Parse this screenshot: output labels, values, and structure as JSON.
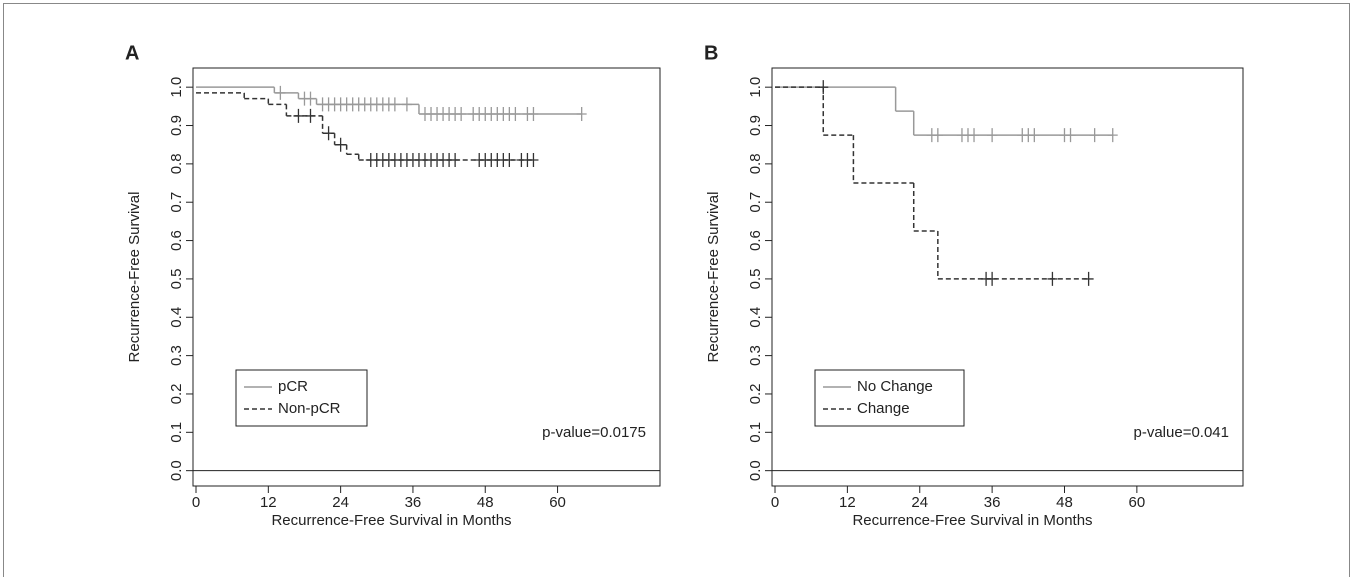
{
  "chart_data": [
    {
      "type": "km",
      "panel_label": "A",
      "xlabel": "Recurrence-Free Survival in Months",
      "ylabel": "Recurrence-Free Survival",
      "annotation": "p-value=0.0175",
      "legend": "bottom-left",
      "xlim": [
        -0.5,
        77
      ],
      "ylim": [
        -0.04,
        1.05
      ],
      "xticks": [
        0,
        12,
        24,
        36,
        48,
        60
      ],
      "yticks": [
        {
          "value": 0,
          "label": "0.0"
        },
        {
          "value": 0.1,
          "label": "0.1"
        },
        {
          "value": 0.2,
          "label": "0.2"
        },
        {
          "value": 0.3,
          "label": "0.3"
        },
        {
          "value": 0.4,
          "label": "0.4"
        },
        {
          "value": 0.5,
          "label": "0.5"
        },
        {
          "value": 0.6,
          "label": "0.6"
        },
        {
          "value": 0.7,
          "label": "0.7"
        },
        {
          "value": 0.8,
          "label": "0.8"
        },
        {
          "value": 0.9,
          "label": "0.9"
        },
        {
          "value": 1.0,
          "label": "1.0"
        }
      ],
      "series": [
        {
          "name": "pCR",
          "color": "#999999",
          "linestyle": "solid",
          "x": [
            0,
            13,
            17,
            20,
            37
          ],
          "values": [
            1.0,
            0.985,
            0.97,
            0.955,
            0.93
          ],
          "censored": {
            "x": [
              14,
              18,
              19,
              21,
              22,
              23,
              24,
              25,
              26,
              27,
              28,
              29,
              30,
              31,
              32,
              33,
              35,
              38,
              39,
              40,
              41,
              42,
              43,
              44,
              46,
              47,
              48,
              49,
              50,
              51,
              52,
              53,
              55,
              56,
              64
            ],
            "values": [
              0.985,
              0.97,
              0.97,
              0.955,
              0.955,
              0.955,
              0.955,
              0.955,
              0.955,
              0.955,
              0.955,
              0.955,
              0.955,
              0.955,
              0.955,
              0.955,
              0.955,
              0.93,
              0.93,
              0.93,
              0.93,
              0.93,
              0.93,
              0.93,
              0.93,
              0.93,
              0.93,
              0.93,
              0.93,
              0.93,
              0.93,
              0.93,
              0.93,
              0.93,
              0.93
            ]
          }
        },
        {
          "name": "Non-pCR",
          "color": "#333333",
          "linestyle": "dashed",
          "x": [
            0,
            8,
            12,
            15,
            21,
            23,
            25,
            27
          ],
          "values": [
            0.985,
            0.97,
            0.955,
            0.925,
            0.88,
            0.85,
            0.825,
            0.81
          ],
          "censored": {
            "x": [
              17,
              19,
              22,
              24,
              29,
              30,
              31,
              32,
              33,
              34,
              35,
              36,
              37,
              38,
              39,
              40,
              41,
              42,
              43,
              47,
              48,
              49,
              50,
              51,
              52,
              54,
              55,
              56
            ],
            "values": [
              0.925,
              0.925,
              0.88,
              0.85,
              0.81,
              0.81,
              0.81,
              0.81,
              0.81,
              0.81,
              0.81,
              0.81,
              0.81,
              0.81,
              0.81,
              0.81,
              0.81,
              0.81,
              0.81,
              0.81,
              0.81,
              0.81,
              0.81,
              0.81,
              0.81,
              0.81,
              0.81,
              0.81
            ]
          }
        }
      ]
    },
    {
      "type": "km",
      "panel_label": "B",
      "xlabel": "Recurrence-Free Survival in Months",
      "ylabel": "Recurrence-Free Survival",
      "annotation": "p-value=0.041",
      "legend": "bottom-left",
      "xlim": [
        -0.5,
        77.6
      ],
      "ylim": [
        -0.04,
        1.05
      ],
      "xticks": [
        0,
        12,
        24,
        36,
        48,
        60
      ],
      "yticks": [
        {
          "value": 0,
          "label": "0.0"
        },
        {
          "value": 0.1,
          "label": "0.1"
        },
        {
          "value": 0.2,
          "label": "0.2"
        },
        {
          "value": 0.3,
          "label": "0.3"
        },
        {
          "value": 0.4,
          "label": "0.4"
        },
        {
          "value": 0.5,
          "label": "0.5"
        },
        {
          "value": 0.6,
          "label": "0.6"
        },
        {
          "value": 0.7,
          "label": "0.7"
        },
        {
          "value": 0.8,
          "label": "0.8"
        },
        {
          "value": 0.9,
          "label": "0.9"
        },
        {
          "value": 1.0,
          "label": "1.0"
        }
      ],
      "series": [
        {
          "name": "No Change",
          "color": "#999999",
          "linestyle": "solid",
          "x": [
            0,
            20,
            23
          ],
          "values": [
            1.0,
            0.9375,
            0.875
          ],
          "censored": {
            "x": [
              26,
              27,
              31,
              32,
              33,
              36,
              41,
              42,
              43,
              48,
              49,
              53,
              56
            ],
            "values": [
              0.875,
              0.875,
              0.875,
              0.875,
              0.875,
              0.875,
              0.875,
              0.875,
              0.875,
              0.875,
              0.875,
              0.875,
              0.875
            ]
          }
        },
        {
          "name": "Change",
          "color": "#333333",
          "linestyle": "dashed",
          "x": [
            0,
            8,
            13,
            23,
            27
          ],
          "values": [
            1.0,
            0.875,
            0.75,
            0.625,
            0.5
          ],
          "censored": {
            "x": [
              8,
              35,
              36,
              46,
              52
            ],
            "values": [
              1.0,
              0.5,
              0.5,
              0.5,
              0.5
            ]
          }
        }
      ]
    }
  ]
}
